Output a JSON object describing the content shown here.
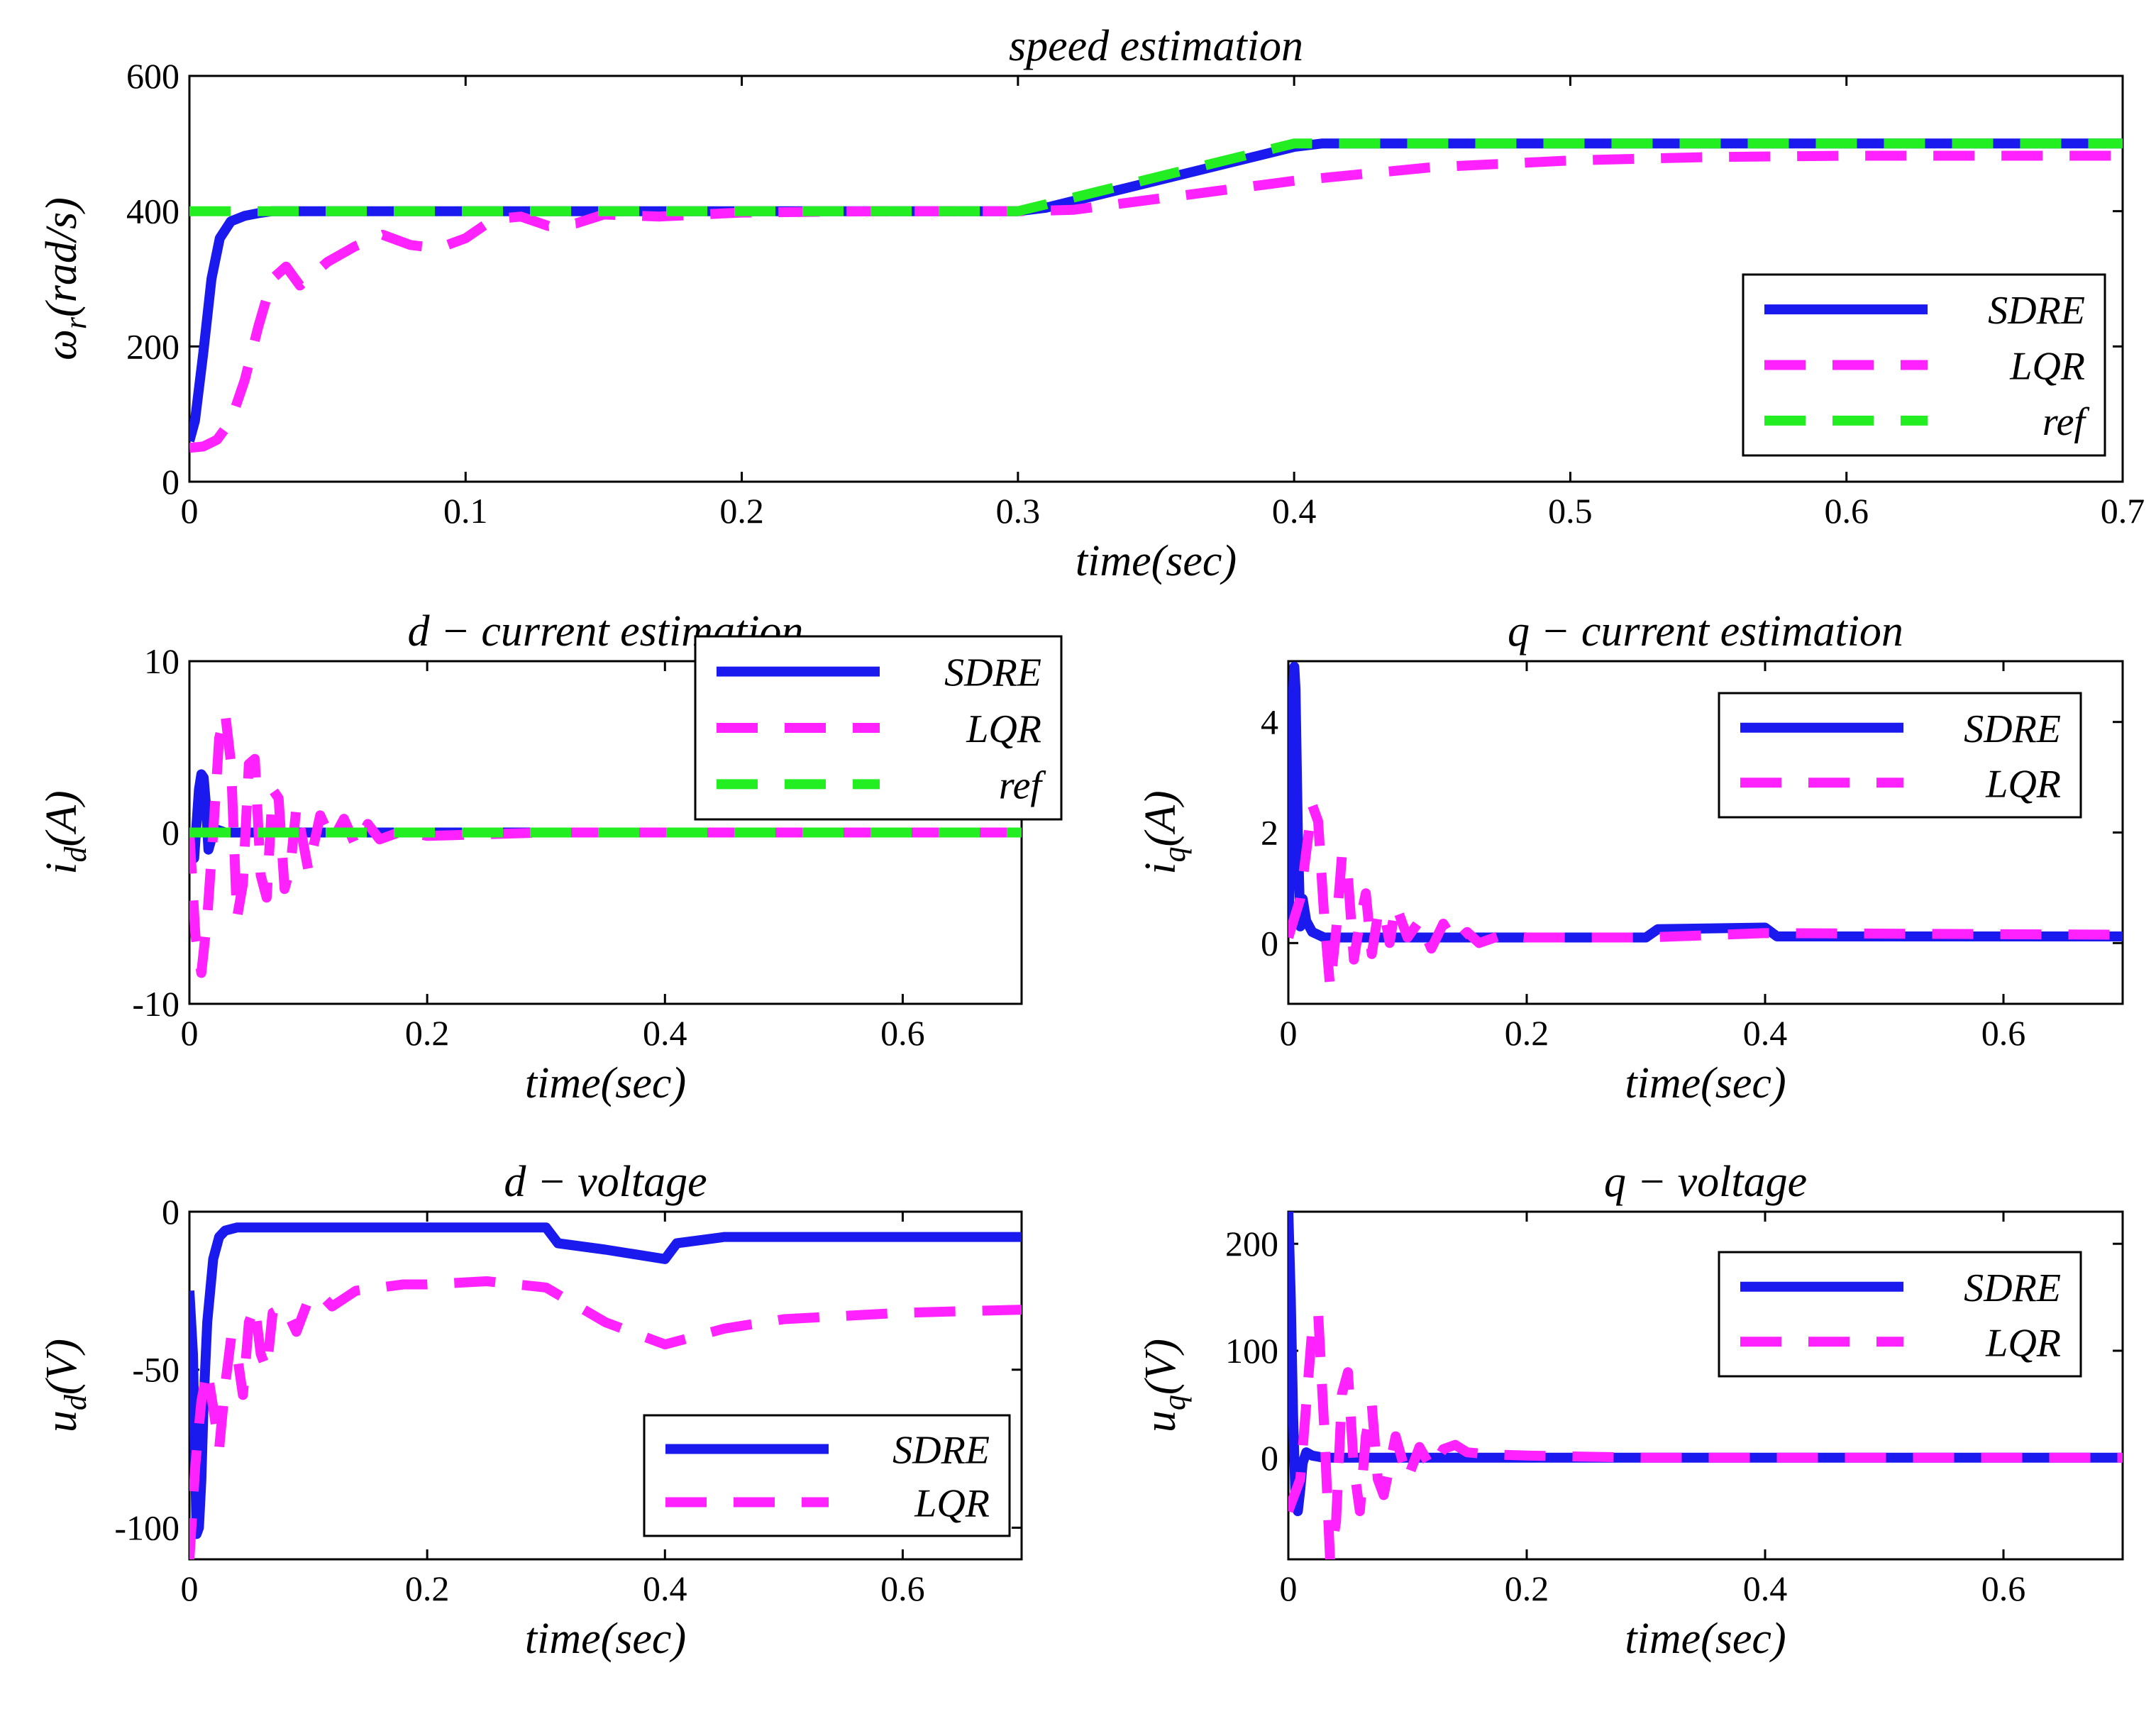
{
  "colors": {
    "SDRE": "#1a1aef",
    "LQR": "#ff22ff",
    "ref": "#22ee22"
  },
  "chart_data": [
    {
      "id": "speed",
      "type": "line",
      "title": "speed estimation",
      "xlabel": "time(sec)",
      "ylabel": "ωr(rad/s)",
      "xlim": [
        0,
        0.7
      ],
      "ylim": [
        0,
        600
      ],
      "xticks": [
        0,
        0.1,
        0.2,
        0.3,
        0.4,
        0.5,
        0.6,
        0.7
      ],
      "xtick_labels": [
        "0",
        "0.1",
        "0.2",
        "0.3",
        "0.4",
        "0.5",
        "0.6",
        "0.7"
      ],
      "yticks": [
        0,
        200,
        400,
        600
      ],
      "ytick_labels": [
        "0",
        "200",
        "400",
        "600"
      ],
      "legend_position": "lower-right",
      "series": [
        {
          "name": "SDRE",
          "dash": "solid",
          "x": [
            0,
            0.002,
            0.005,
            0.008,
            0.011,
            0.015,
            0.02,
            0.025,
            0.03,
            0.04,
            0.06,
            0.3,
            0.31,
            0.35,
            0.4,
            0.41,
            0.7
          ],
          "y": [
            60,
            90,
            190,
            300,
            360,
            385,
            393,
            397,
            400,
            400,
            400,
            400,
            405,
            445,
            495,
            500,
            500
          ]
        },
        {
          "name": "LQR",
          "dash": "dashed",
          "x": [
            0,
            0.005,
            0.01,
            0.015,
            0.02,
            0.025,
            0.03,
            0.035,
            0.04,
            0.05,
            0.06,
            0.07,
            0.08,
            0.09,
            0.1,
            0.11,
            0.12,
            0.13,
            0.14,
            0.15,
            0.17,
            0.2,
            0.25,
            0.3,
            0.32,
            0.35,
            0.4,
            0.45,
            0.5,
            0.55,
            0.6,
            0.7
          ],
          "y": [
            50,
            52,
            62,
            90,
            150,
            230,
            300,
            318,
            290,
            325,
            348,
            365,
            350,
            345,
            360,
            388,
            392,
            378,
            382,
            395,
            392,
            398,
            400,
            400,
            402,
            418,
            445,
            465,
            475,
            480,
            482,
            482
          ]
        },
        {
          "name": "ref",
          "dash": "dashed",
          "x": [
            0,
            0.3,
            0.4,
            0.7
          ],
          "y": [
            400,
            400,
            500,
            500
          ]
        }
      ]
    },
    {
      "id": "id",
      "type": "line",
      "title": "d − current estimation",
      "xlabel": "time(sec)",
      "ylabel": "id(A)",
      "xlim": [
        0,
        0.7
      ],
      "ylim": [
        -10,
        10
      ],
      "xticks": [
        0,
        0.2,
        0.4,
        0.6
      ],
      "xtick_labels": [
        "0",
        "0.2",
        "0.4",
        "0.6"
      ],
      "yticks": [
        -10,
        0,
        10
      ],
      "ytick_labels": [
        "-10",
        "0",
        "10"
      ],
      "legend_position": "top-right",
      "series": [
        {
          "name": "SDRE",
          "dash": "solid",
          "x": [
            0,
            0.004,
            0.008,
            0.01,
            0.012,
            0.014,
            0.016,
            0.018,
            0.022,
            0.03,
            0.05,
            0.1,
            0.7
          ],
          "y": [
            0,
            -1.5,
            2.5,
            3.4,
            3.2,
            1.5,
            -1,
            -0.5,
            0.2,
            0,
            0,
            0,
            0
          ]
        },
        {
          "name": "LQR",
          "dash": "dashed",
          "x": [
            0,
            0.005,
            0.01,
            0.015,
            0.02,
            0.025,
            0.03,
            0.035,
            0.04,
            0.045,
            0.05,
            0.055,
            0.06,
            0.065,
            0.07,
            0.075,
            0.08,
            0.085,
            0.09,
            0.1,
            0.11,
            0.12,
            0.13,
            0.14,
            0.15,
            0.16,
            0.18,
            0.2,
            0.3,
            0.7
          ],
          "y": [
            0,
            -6,
            -8.2,
            -5,
            0,
            5.5,
            7,
            4,
            -5,
            -3,
            4,
            4.3,
            -2.5,
            -3.8,
            2.5,
            2,
            -3.3,
            -2,
            1.5,
            -2.2,
            1,
            -0.5,
            0.8,
            -0.8,
            0.5,
            -0.4,
            0.1,
            -0.2,
            0,
            0
          ]
        },
        {
          "name": "ref",
          "dash": "dashed",
          "x": [
            0,
            0.7
          ],
          "y": [
            0,
            0
          ]
        }
      ]
    },
    {
      "id": "iq",
      "type": "line",
      "title": "q − current estimation",
      "xlabel": "time(sec)",
      "ylabel": "iq(A)",
      "xlim": [
        0,
        0.7
      ],
      "ylim": [
        -1.1,
        5.1
      ],
      "xticks": [
        0,
        0.2,
        0.4,
        0.6
      ],
      "xtick_labels": [
        "0",
        "0.2",
        "0.4",
        "0.6"
      ],
      "yticks": [
        0,
        2,
        4
      ],
      "ytick_labels": [
        "0",
        "2",
        "4"
      ],
      "legend_position": "top-right",
      "series": [
        {
          "name": "SDRE",
          "dash": "solid",
          "x": [
            0,
            0.002,
            0.004,
            0.005,
            0.006,
            0.008,
            0.01,
            0.012,
            0.015,
            0.02,
            0.03,
            0.1,
            0.3,
            0.31,
            0.4,
            0.41,
            0.7
          ],
          "y": [
            0.2,
            2,
            4.5,
            5,
            4.6,
            2,
            0.3,
            0.8,
            0.4,
            0.2,
            0.1,
            0.1,
            0.1,
            0.25,
            0.28,
            0.12,
            0.12
          ]
        },
        {
          "name": "LQR",
          "dash": "dashed",
          "x": [
            0,
            0.01,
            0.02,
            0.025,
            0.03,
            0.035,
            0.04,
            0.045,
            0.05,
            0.055,
            0.06,
            0.065,
            0.07,
            0.075,
            0.08,
            0.085,
            0.09,
            0.1,
            0.11,
            0.12,
            0.13,
            0.14,
            0.15,
            0.16,
            0.18,
            0.2,
            0.3,
            0.4,
            0.7
          ],
          "y": [
            0.1,
            0.8,
            2.5,
            2.2,
            0.5,
            -0.8,
            0.2,
            1.6,
            1.2,
            -0.3,
            0.4,
            0.9,
            -0.2,
            0.5,
            0.6,
            0,
            0.7,
            0.1,
            0.4,
            -0.1,
            0.35,
            0,
            0.2,
            0,
            0.15,
            0.1,
            0.1,
            0.18,
            0.15
          ]
        }
      ]
    },
    {
      "id": "ud",
      "type": "line",
      "title": "d − voltage",
      "xlabel": "time(sec)",
      "ylabel": "ud(V)",
      "xlim": [
        0,
        0.7
      ],
      "ylim": [
        -110,
        0
      ],
      "xticks": [
        0,
        0.2,
        0.4,
        0.6
      ],
      "xtick_labels": [
        "0",
        "0.2",
        "0.4",
        "0.6"
      ],
      "yticks": [
        -100,
        -50,
        0
      ],
      "ytick_labels": [
        "-100",
        "-50",
        "0"
      ],
      "legend_position": "bottom-right",
      "series": [
        {
          "name": "SDRE",
          "dash": "solid",
          "x": [
            0,
            0.003,
            0.006,
            0.008,
            0.01,
            0.012,
            0.015,
            0.02,
            0.025,
            0.03,
            0.04,
            0.06,
            0.3,
            0.31,
            0.35,
            0.4,
            0.41,
            0.45,
            0.7
          ],
          "y": [
            -25,
            -45,
            -102,
            -100,
            -85,
            -60,
            -35,
            -15,
            -8,
            -6,
            -5,
            -5,
            -5,
            -10,
            -12,
            -15,
            -10,
            -8,
            -8
          ]
        },
        {
          "name": "LQR",
          "dash": "dashed",
          "x": [
            0,
            0.005,
            0.01,
            0.015,
            0.02,
            0.025,
            0.03,
            0.035,
            0.04,
            0.045,
            0.05,
            0.055,
            0.06,
            0.065,
            0.07,
            0.08,
            0.09,
            0.1,
            0.11,
            0.12,
            0.14,
            0.16,
            0.18,
            0.2,
            0.25,
            0.3,
            0.35,
            0.4,
            0.45,
            0.5,
            0.6,
            0.7
          ],
          "y": [
            -110,
            -80,
            -60,
            -50,
            -62,
            -75,
            -55,
            -40,
            -45,
            -58,
            -35,
            -30,
            -45,
            -50,
            -32,
            -30,
            -38,
            -28,
            -26,
            -30,
            -25,
            -24,
            -23,
            -23,
            -22,
            -24,
            -35,
            -42,
            -37,
            -34,
            -32,
            -31
          ]
        }
      ]
    },
    {
      "id": "uq",
      "type": "line",
      "title": "q − voltage",
      "xlabel": "time(sec)",
      "ylabel": "uq(V)",
      "xlim": [
        0,
        0.7
      ],
      "ylim": [
        -95,
        230
      ],
      "xticks": [
        0,
        0.2,
        0.4,
        0.6
      ],
      "xtick_labels": [
        "0",
        "0.2",
        "0.4",
        "0.6"
      ],
      "yticks": [
        0,
        100,
        200
      ],
      "ytick_labels": [
        "0",
        "100",
        "200"
      ],
      "legend_position": "top-right",
      "series": [
        {
          "name": "SDRE",
          "dash": "solid",
          "x": [
            0,
            0.002,
            0.004,
            0.006,
            0.008,
            0.01,
            0.012,
            0.015,
            0.02,
            0.03,
            0.7
          ],
          "y": [
            230,
            150,
            40,
            -40,
            -50,
            -30,
            -5,
            5,
            2,
            0,
            0
          ]
        },
        {
          "name": "LQR",
          "dash": "dashed",
          "x": [
            0,
            0.01,
            0.02,
            0.025,
            0.03,
            0.035,
            0.04,
            0.045,
            0.05,
            0.055,
            0.06,
            0.065,
            0.07,
            0.075,
            0.08,
            0.09,
            0.1,
            0.11,
            0.12,
            0.13,
            0.14,
            0.15,
            0.17,
            0.2,
            0.3,
            0.7
          ],
          "y": [
            -50,
            -20,
            120,
            135,
            30,
            -95,
            -60,
            60,
            80,
            -10,
            -50,
            20,
            50,
            -20,
            -35,
            20,
            -20,
            10,
            -10,
            8,
            12,
            5,
            3,
            2,
            0,
            0
          ]
        }
      ]
    }
  ]
}
